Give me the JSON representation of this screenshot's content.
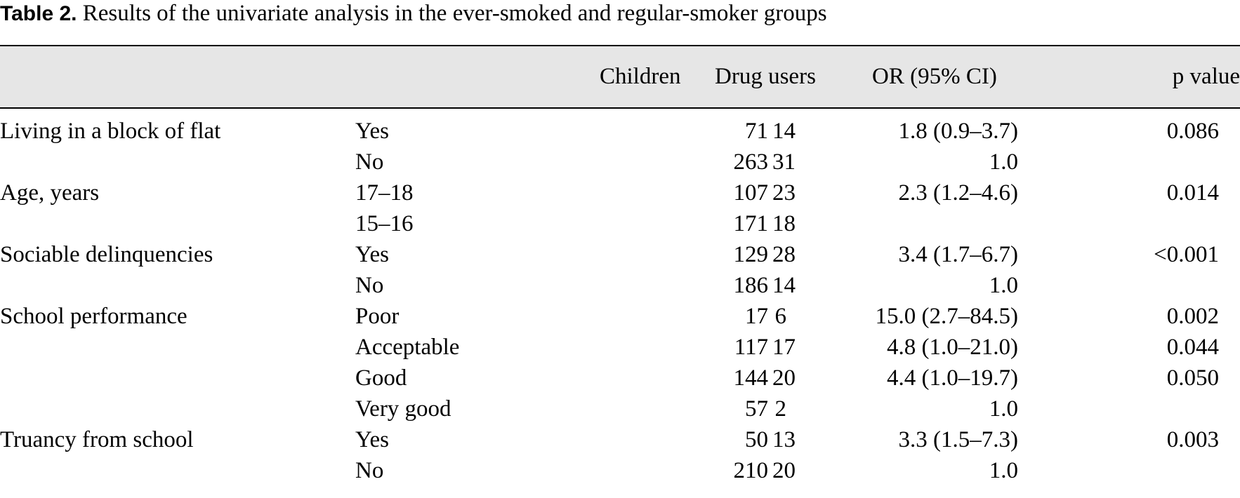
{
  "caption": {
    "label": "Table 2.",
    "text": " Results of the univariate analysis in the ever-smoked and regular-smoker groups"
  },
  "headers": {
    "children": "Children",
    "drug_users": "Drug users",
    "or_ci": "OR (95% CI)",
    "p_value": "p value"
  },
  "rows": [
    {
      "variable": "Living in a block of flat",
      "level": "Yes",
      "children": "71",
      "drug_users": "14",
      "or_ci": "1.8 (0.9–3.7)",
      "p_value": "0.086"
    },
    {
      "variable": "",
      "level": "No",
      "children": "263",
      "drug_users": "31",
      "or_ci": "1.0",
      "p_value": ""
    },
    {
      "variable": "Age, years",
      "level": "17–18",
      "children": "107",
      "drug_users": "23",
      "or_ci": "2.3 (1.2–4.6)",
      "p_value": "0.014"
    },
    {
      "variable": "",
      "level": "15–16",
      "children": "171",
      "drug_users": "18",
      "or_ci": "",
      "p_value": ""
    },
    {
      "variable": "Sociable delinquencies",
      "level": "Yes",
      "children": "129",
      "drug_users": "28",
      "or_ci": "3.4 (1.7–6.7)",
      "p_value": "<0.001"
    },
    {
      "variable": "",
      "level": "No",
      "children": "186",
      "drug_users": "14",
      "or_ci": "1.0",
      "p_value": ""
    },
    {
      "variable": "School performance",
      "level": "Poor",
      "children": "17",
      "drug_users": "6",
      "or_ci": "15.0 (2.7–84.5)",
      "p_value": "0.002"
    },
    {
      "variable": "",
      "level": "Acceptable",
      "children": "117",
      "drug_users": "17",
      "or_ci": "4.8 (1.0–21.0)",
      "p_value": "0.044"
    },
    {
      "variable": "",
      "level": "Good",
      "children": "144",
      "drug_users": "20",
      "or_ci": "4.4 (1.0–19.7)",
      "p_value": "0.050"
    },
    {
      "variable": "",
      "level": "Very good",
      "children": "57",
      "drug_users": "2",
      "or_ci": "1.0",
      "p_value": ""
    },
    {
      "variable": "Truancy from school",
      "level": "Yes",
      "children": "50",
      "drug_users": "13",
      "or_ci": "3.3 (1.5–7.3)",
      "p_value": "0.003"
    },
    {
      "variable": "",
      "level": "No",
      "children": "210",
      "drug_users": "20",
      "or_ci": "1.0",
      "p_value": ""
    }
  ]
}
